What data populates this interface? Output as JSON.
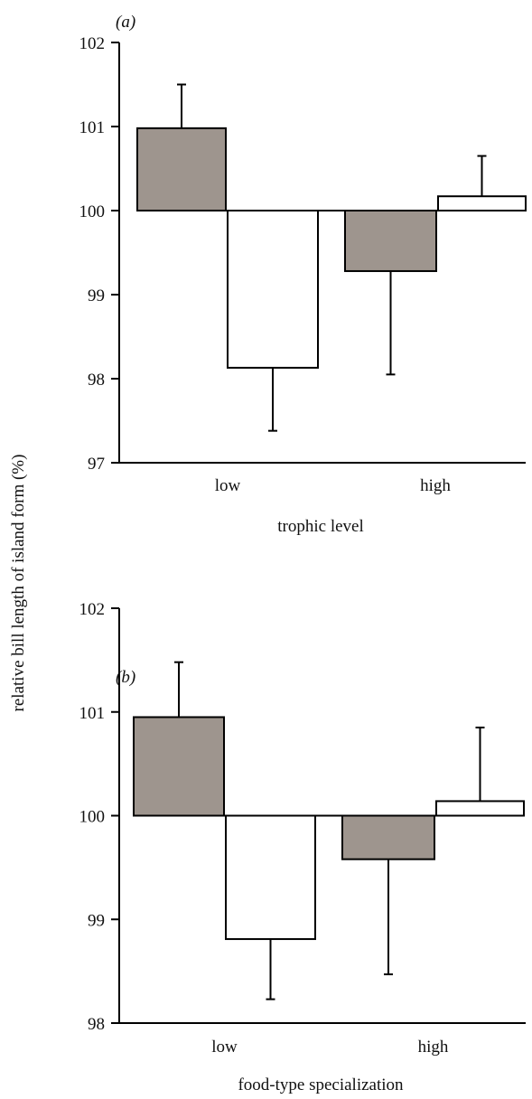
{
  "y_axis_title": "relative bill length of island form (%)",
  "colors": {
    "series_filled": "#9e958e",
    "series_open": "#ffffff",
    "ink": "#000000"
  },
  "chart_data": [
    {
      "type": "bar",
      "panel_label": "(a)",
      "categories": [
        "low",
        "high"
      ],
      "xlabel": "trophic level",
      "ylabel": "relative bill length of island form (%)",
      "ylim": [
        97,
        102
      ],
      "yticks": [
        97,
        98,
        99,
        100,
        101,
        102
      ],
      "baseline": 100,
      "grid": false,
      "series": [
        {
          "fill": "filled",
          "values": [
            100.98,
            99.28
          ],
          "error_tops": [
            101.5,
            98.05
          ]
        },
        {
          "fill": "open",
          "values": [
            98.13,
            100.17
          ],
          "error_tops": [
            97.38,
            100.65
          ]
        }
      ]
    },
    {
      "type": "bar",
      "panel_label": "(b)",
      "categories": [
        "low",
        "high"
      ],
      "xlabel": "food-type specialization",
      "ylabel": "relative bill length of island form (%)",
      "ylim": [
        98,
        102
      ],
      "yticks": [
        98,
        99,
        100,
        101,
        102
      ],
      "baseline": 100,
      "grid": false,
      "series": [
        {
          "fill": "filled",
          "values": [
            100.95,
            99.58
          ],
          "error_tops": [
            101.48,
            98.47
          ]
        },
        {
          "fill": "open",
          "values": [
            98.81,
            100.14
          ],
          "error_tops": [
            98.23,
            100.85
          ]
        }
      ]
    }
  ]
}
